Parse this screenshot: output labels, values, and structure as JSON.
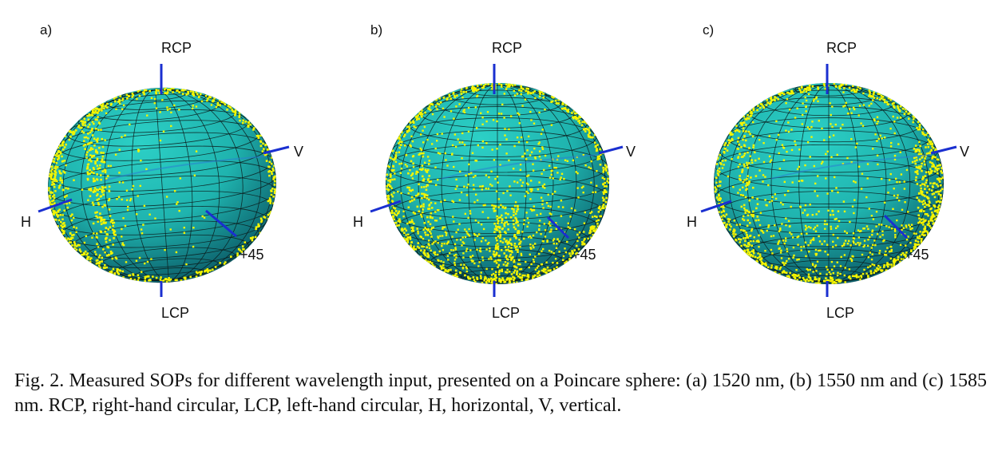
{
  "figure": {
    "colors": {
      "sphere": "#1fb3ae",
      "sphere_dark": "#0b5a66",
      "grid": "#0a1a1a",
      "points": "#f5f500",
      "axis": "#1a2fd0"
    },
    "panels": [
      {
        "letter": "a)",
        "rcp": "RCP",
        "lcp": "LCP",
        "h": "H",
        "v": "V",
        "p45": "+45"
      },
      {
        "letter": "b)",
        "rcp": "RCP",
        "lcp": "LCP",
        "h": "H",
        "v": "V",
        "p45": "+45"
      },
      {
        "letter": "c)",
        "rcp": "RCP",
        "lcp": "LCP",
        "h": "H",
        "v": "V",
        "p45": "+45"
      }
    ]
  },
  "caption": {
    "text": "Fig. 2. Measured SOPs for different wavelength input, presented on a Poincare sphere: (a) 1520 nm, (b) 1550 nm and (c) 1585 nm. RCP, right-hand circular, LCP, left-hand circular, H, horizontal, V, vertical."
  }
}
